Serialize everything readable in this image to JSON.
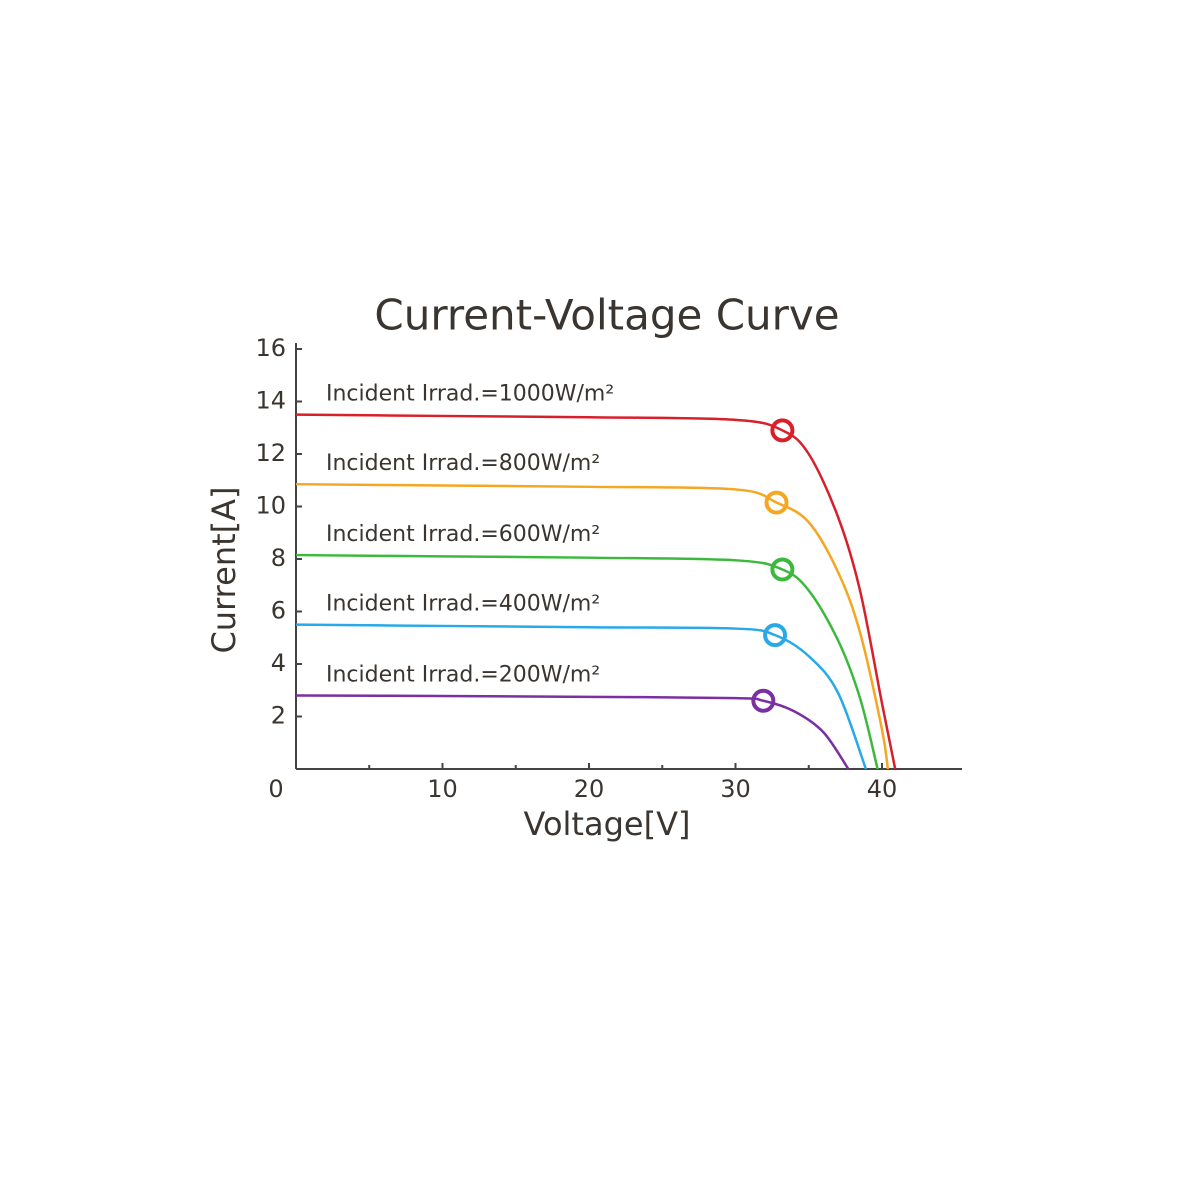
{
  "chart_data": {
    "type": "line",
    "title": "Current-Voltage Curve",
    "x_label": "Voltage[V]",
    "y_label": "Current[A]",
    "xlim": [
      0,
      45.5
    ],
    "xticks": [
      0,
      10,
      20,
      30,
      40
    ],
    "x_minor_ticks": [
      5,
      15,
      25,
      35
    ],
    "ylim": [
      0,
      16
    ],
    "yticks": [
      2,
      4,
      6,
      8,
      10,
      12,
      14,
      16
    ],
    "series": [
      {
        "name": "Incident Irrad.=1000W/m²",
        "color": "#d7202b",
        "x": [
          0,
          10,
          20,
          30,
          33.2,
          35,
          37,
          38.5,
          40,
          40.9
        ],
        "values": [
          13.5,
          13.45,
          13.4,
          13.3,
          12.9,
          12.0,
          9.6,
          6.8,
          2.5,
          0
        ],
        "mpp": [
          33.2,
          12.9
        ]
      },
      {
        "name": "Incident Irrad.=800W/m²",
        "color": "#f5a623",
        "x": [
          0,
          10,
          20,
          30,
          32.8,
          35,
          37,
          38.5,
          40,
          40.4
        ],
        "values": [
          10.85,
          10.8,
          10.75,
          10.65,
          10.15,
          9.4,
          7.5,
          5.2,
          1.5,
          0
        ],
        "mpp": [
          32.8,
          10.15
        ]
      },
      {
        "name": "Incident Irrad.=600W/m²",
        "color": "#3cb93c",
        "x": [
          0,
          10,
          20,
          30,
          33.2,
          35,
          37,
          38.5,
          39.7
        ],
        "values": [
          8.15,
          8.1,
          8.05,
          7.95,
          7.6,
          6.8,
          4.9,
          2.7,
          0
        ],
        "mpp": [
          33.2,
          7.6
        ]
      },
      {
        "name": "Incident Irrad.=400W/m²",
        "color": "#29a9e8",
        "x": [
          0,
          10,
          20,
          30,
          32.7,
          35,
          37,
          38.9
        ],
        "values": [
          5.5,
          5.45,
          5.4,
          5.35,
          5.1,
          4.3,
          2.9,
          0
        ],
        "mpp": [
          32.7,
          5.1
        ]
      },
      {
        "name": "Incident Irrad.=200W/m²",
        "color": "#7b2fa0",
        "x": [
          0,
          10,
          20,
          30,
          31.9,
          34,
          36,
          37.7
        ],
        "values": [
          2.8,
          2.78,
          2.75,
          2.7,
          2.6,
          2.2,
          1.4,
          0
        ],
        "mpp": [
          31.9,
          2.6
        ]
      }
    ]
  }
}
